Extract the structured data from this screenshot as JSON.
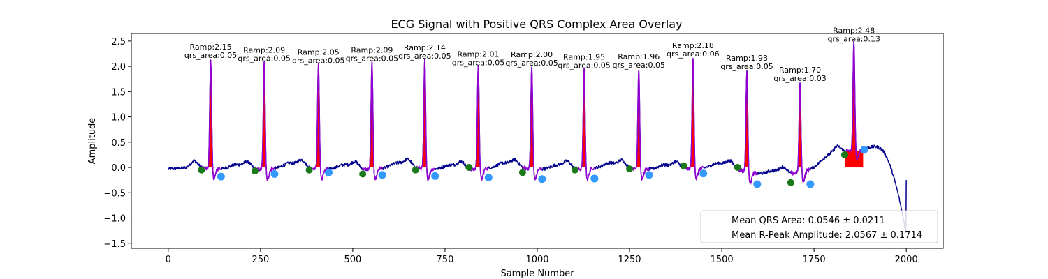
{
  "chart_data": {
    "type": "line",
    "title": "ECG Signal with Positive QRS Complex Area Overlay",
    "xlabel": "Sample Number",
    "ylabel": "Amplitude",
    "xlim": [
      -100,
      2100
    ],
    "ylim": [
      -1.6,
      2.65
    ],
    "xticks": [
      0,
      250,
      500,
      750,
      1000,
      1250,
      1500,
      1750,
      2000
    ],
    "yticks": [
      -1.5,
      -1.0,
      -0.5,
      0.0,
      0.5,
      1.0,
      1.5,
      2.0,
      2.5
    ],
    "xtick_labels": [
      "0",
      "250",
      "500",
      "750",
      "1000",
      "1250",
      "1500",
      "1750",
      "2000"
    ],
    "ytick_labels": [
      "−1.5",
      "−1.0",
      "−0.5",
      "0.0",
      "0.5",
      "1.0",
      "1.5",
      "2.0",
      "2.5"
    ],
    "colors": {
      "signal": "#00008b",
      "qrs_segment": "#9400d3",
      "qrs_area": "#ff0000",
      "q_point": "#1a7a1a",
      "s_point": "#3399ff"
    },
    "beats": [
      {
        "r": 115,
        "ramp": 2.15,
        "area": 0.05,
        "ramp_label": "Ramp:2.15",
        "area_label": "qrs_area:0.05",
        "q": [
          90,
          -0.05
        ],
        "s": [
          143,
          -0.18
        ]
      },
      {
        "r": 260,
        "ramp": 2.09,
        "area": 0.05,
        "ramp_label": "Ramp:2.09",
        "area_label": "qrs_area:0.05",
        "q": [
          235,
          -0.07
        ],
        "s": [
          288,
          -0.13
        ]
      },
      {
        "r": 407,
        "ramp": 2.05,
        "area": 0.05,
        "ramp_label": "Ramp:2.05",
        "area_label": "qrs_area:0.05",
        "q": [
          382,
          -0.05
        ],
        "s": [
          435,
          -0.1
        ]
      },
      {
        "r": 552,
        "ramp": 2.09,
        "area": 0.05,
        "ramp_label": "Ramp:2.09",
        "area_label": "qrs_area:0.05",
        "q": [
          527,
          -0.13
        ],
        "s": [
          580,
          -0.15
        ]
      },
      {
        "r": 695,
        "ramp": 2.14,
        "area": 0.05,
        "ramp_label": "Ramp:2.14",
        "area_label": "qrs_area:0.05",
        "q": [
          670,
          -0.05
        ],
        "s": [
          723,
          -0.17
        ]
      },
      {
        "r": 840,
        "ramp": 2.01,
        "area": 0.05,
        "ramp_label": "Ramp:2.01",
        "area_label": "qrs_area:0.05",
        "q": [
          815,
          0.0
        ],
        "s": [
          868,
          -0.2
        ]
      },
      {
        "r": 985,
        "ramp": 2.0,
        "area": 0.05,
        "ramp_label": "Ramp:2.00",
        "area_label": "qrs_area:0.05",
        "q": [
          960,
          -0.1
        ],
        "s": [
          1013,
          -0.23
        ]
      },
      {
        "r": 1127,
        "ramp": 1.95,
        "area": 0.05,
        "ramp_label": "Ramp:1.95",
        "area_label": "qrs_area:0.05",
        "q": [
          1102,
          -0.05
        ],
        "s": [
          1155,
          -0.22
        ]
      },
      {
        "r": 1275,
        "ramp": 1.96,
        "area": 0.05,
        "ramp_label": "Ramp:1.96",
        "area_label": "qrs_area:0.05",
        "q": [
          1250,
          -0.03
        ],
        "s": [
          1303,
          -0.15
        ]
      },
      {
        "r": 1422,
        "ramp": 2.18,
        "area": 0.06,
        "ramp_label": "Ramp:2.18",
        "area_label": "qrs_area:0.06",
        "q": [
          1397,
          0.03
        ],
        "s": [
          1450,
          -0.12
        ]
      },
      {
        "r": 1568,
        "ramp": 1.93,
        "area": 0.05,
        "ramp_label": "Ramp:1.93",
        "area_label": "qrs_area:0.05",
        "q": [
          1543,
          0.0
        ],
        "s": [
          1596,
          -0.33
        ]
      },
      {
        "r": 1712,
        "ramp": 1.7,
        "area": 0.03,
        "ramp_label": "Ramp:1.70",
        "area_label": "qrs_area:0.03",
        "q": [
          1687,
          -0.3
        ],
        "s": [
          1740,
          -0.33
        ]
      },
      {
        "r": 1858,
        "ramp": 2.48,
        "area": 0.13,
        "ramp_label": "Ramp:2.48",
        "area_label": "qrs_area:0.13",
        "q": [
          1833,
          0.25
        ],
        "s": [
          1886,
          0.35
        ]
      }
    ],
    "legend": {
      "placement": "lower-right",
      "entries": [
        "Mean QRS Area: 0.0546 ± 0.0211",
        "Mean R-Peak Amplitude: 2.0567 ± 0.1714"
      ]
    }
  }
}
